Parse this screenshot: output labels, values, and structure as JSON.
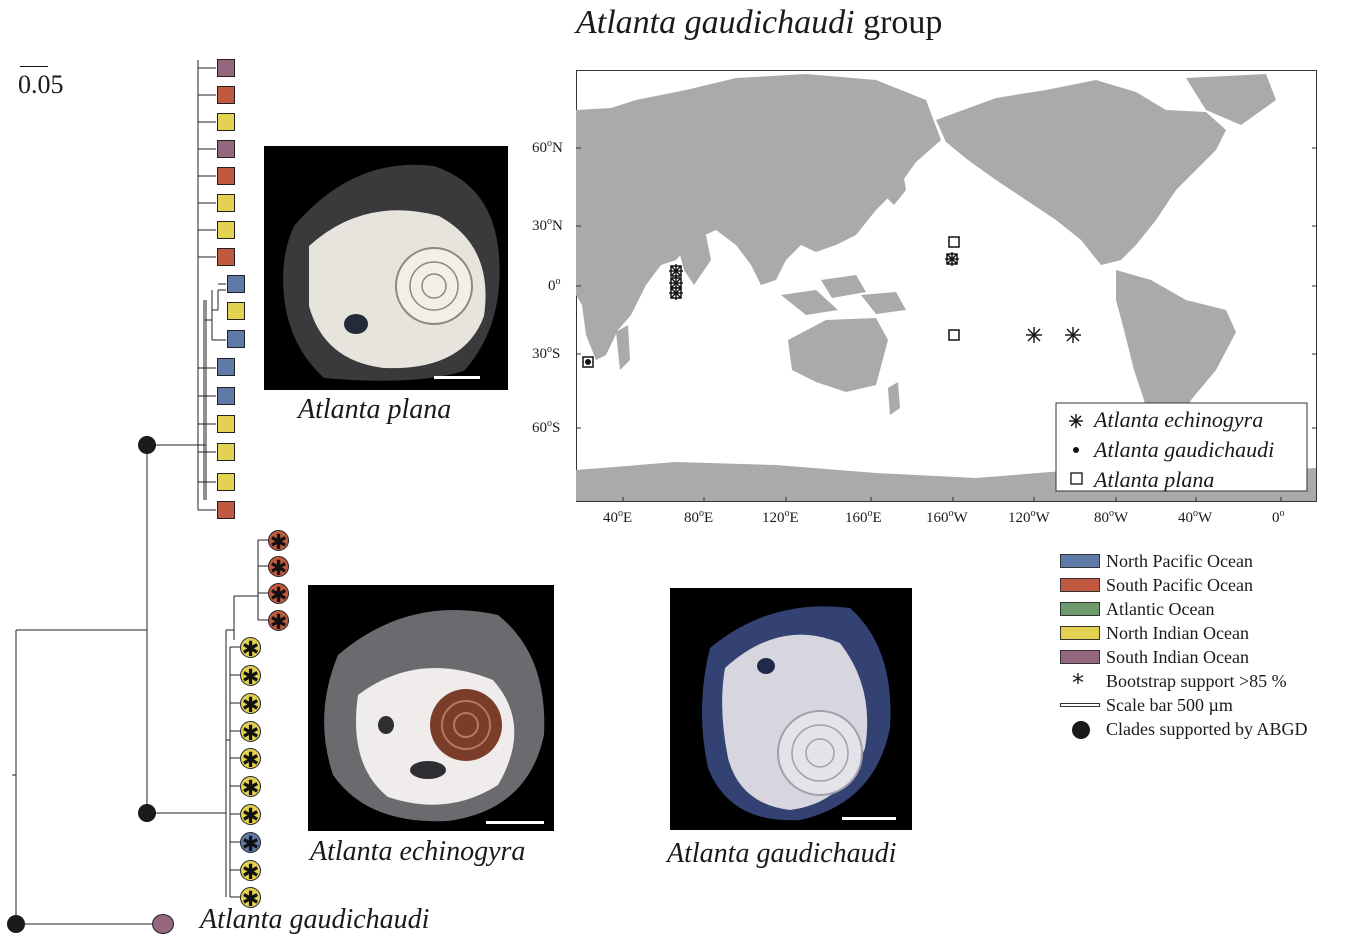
{
  "title": {
    "species": "Atlanta gaudichaudi",
    "suffix": "group"
  },
  "tree": {
    "scale_label": "0.05",
    "outgroup_label": "Atlanta gaudichaudi"
  },
  "photos": [
    {
      "id": "plana",
      "caption": "Atlanta plana"
    },
    {
      "id": "echinogyra",
      "caption": "Atlanta echinogyra"
    },
    {
      "id": "gaudichaudi",
      "caption": "Atlanta gaudichaudi"
    }
  ],
  "map": {
    "lat_ticks": [
      "60",
      "30",
      "0",
      "30",
      "60"
    ],
    "lat_suffix": [
      "N",
      "N",
      "",
      "S",
      "S"
    ],
    "lon_ticks": [
      "40",
      "80",
      "120",
      "160",
      "160",
      "120",
      "80",
      "40",
      "0"
    ],
    "lon_suffix": [
      "E",
      "E",
      "E",
      "E",
      "W",
      "W",
      "W",
      "W",
      ""
    ],
    "legend": [
      {
        "symbol": "asterisk",
        "label": "Atlanta echinogyra"
      },
      {
        "symbol": "dot",
        "label": "Atlanta gaudichaudi"
      },
      {
        "symbol": "square",
        "label": "Atlanta plana"
      }
    ]
  },
  "legend": {
    "oceans": [
      {
        "label": "North Pacific Ocean",
        "color": "#5f7aa6"
      },
      {
        "label": "South Pacific Ocean",
        "color": "#c0593f"
      },
      {
        "label": "Atlantic Ocean",
        "color": "#6e9a6e"
      },
      {
        "label": "North Indian Ocean",
        "color": "#e2d152"
      },
      {
        "label": "South Indian Ocean",
        "color": "#94677e"
      }
    ],
    "bootstrap": "Bootstrap support >85 %",
    "scale_bar": "Scale bar 500 µm",
    "abgd": "Clades supported by ABGD"
  },
  "colors": {
    "north_pacific": "#5f7aa6",
    "south_pacific": "#c0593f",
    "north_indian": "#e2d152",
    "south_indian": "#94677e",
    "land": "#aaaaaa"
  }
}
